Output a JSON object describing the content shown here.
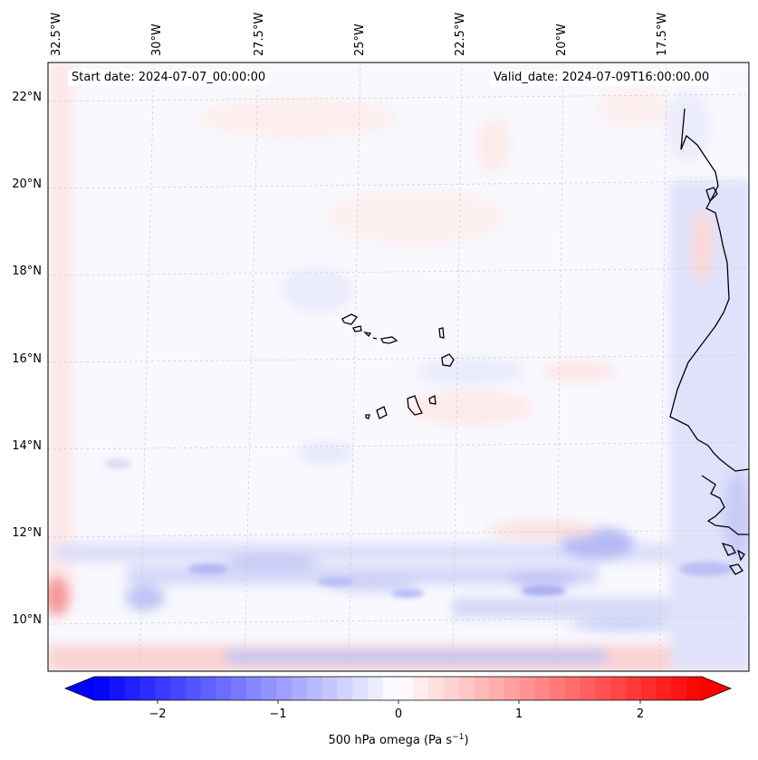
{
  "map": {
    "lon_ticks": [
      "32.5°W",
      "30°W",
      "27.5°W",
      "25°W",
      "22.5°W",
      "20°W",
      "17.5°W"
    ],
    "lat_ticks": [
      "22°N",
      "20°N",
      "18°N",
      "16°N",
      "14°N",
      "12°N",
      "10°N"
    ],
    "start_date": "Start date: 2024-07-07_00:00:00",
    "valid_date": "Valid_date: 2024-07-09T16:00:00.00",
    "gridlines": true,
    "coastline_color": "#000000"
  },
  "colorbar": {
    "ticks": [
      "−2",
      "−1",
      "0",
      "1",
      "2"
    ],
    "label": "500 hPa omega (Pa s",
    "label_sup": "−1",
    "label_end": ")",
    "cmap": "bwr",
    "range": [
      -2.7,
      2.7
    ],
    "colors": {
      "low": "#0000ff",
      "mid": "#ffffff",
      "high": "#ff0000"
    }
  }
}
